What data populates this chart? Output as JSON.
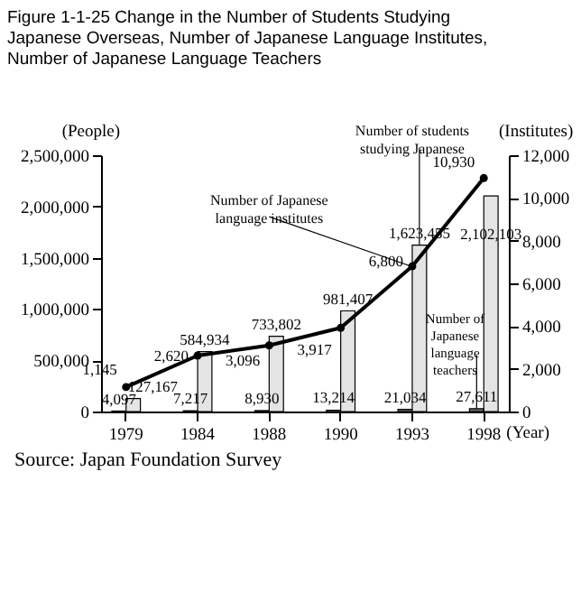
{
  "chart_data": {
    "type": "bar",
    "title": "Figure 1-1-25 Change in the Number of Students Studying Japanese Overseas, Number of Japanese Language Institutes, Number of Japanese Language Teachers",
    "xlabel": "(Year)",
    "ylabel": "(People)",
    "y2label": "(Institutes)",
    "categories": [
      "1979",
      "1984",
      "1988",
      "1990",
      "1993",
      "1998"
    ],
    "series": [
      {
        "name": "Number of Japanese language teachers",
        "color": "#6e6e6e",
        "values": [
          4097,
          7217,
          8930,
          13214,
          21034,
          27611
        ],
        "value_labels": [
          "4,097",
          "7,217",
          "8,930",
          "13,214",
          "21,034",
          "27,611"
        ]
      },
      {
        "name": "Number of students studying Japanese",
        "color": "#e4e4e4",
        "values": [
          127167,
          584934,
          733802,
          981407,
          1623455,
          2102103
        ],
        "value_labels": [
          "127,167",
          "584,934",
          "733,802",
          "981,407",
          "1,623,455",
          "2,102,103"
        ]
      },
      {
        "name": "Number of Japanese language institutes",
        "type": "line",
        "axis": "y2",
        "color": "#000000",
        "values": [
          1145,
          2620,
          3096,
          3917,
          6800,
          10930
        ],
        "value_labels": [
          "1,145",
          "2,620",
          "3,096",
          "3,917",
          "6,800",
          "10,930"
        ]
      }
    ],
    "ylim": [
      0,
      2500000
    ],
    "yticks": [
      0,
      {
        "value": 500000,
        "label": "500,000"
      },
      {
        "value": 1000000,
        "label": "1,000,000"
      },
      {
        "value": 1500000,
        "label": "1,500,000"
      },
      {
        "value": 2000000,
        "label": "2,000,000"
      },
      {
        "value": 2500000,
        "label": "2,500,000"
      }
    ],
    "y2lim": [
      0,
      12000
    ],
    "y2ticks": [
      0,
      {
        "value": 2000,
        "label": "2,000"
      },
      {
        "value": 4000,
        "label": "4,000"
      },
      {
        "value": 6000,
        "label": "6,000"
      },
      {
        "value": 8000,
        "label": "8,000"
      },
      {
        "value": 10000,
        "label": "10,000"
      },
      {
        "value": 12000,
        "label": "12,000"
      }
    ],
    "data_labels": true,
    "legend": false,
    "grid": false,
    "marker": "circle",
    "annotations": [
      "Source: Japan Foundation Survey"
    ]
  }
}
